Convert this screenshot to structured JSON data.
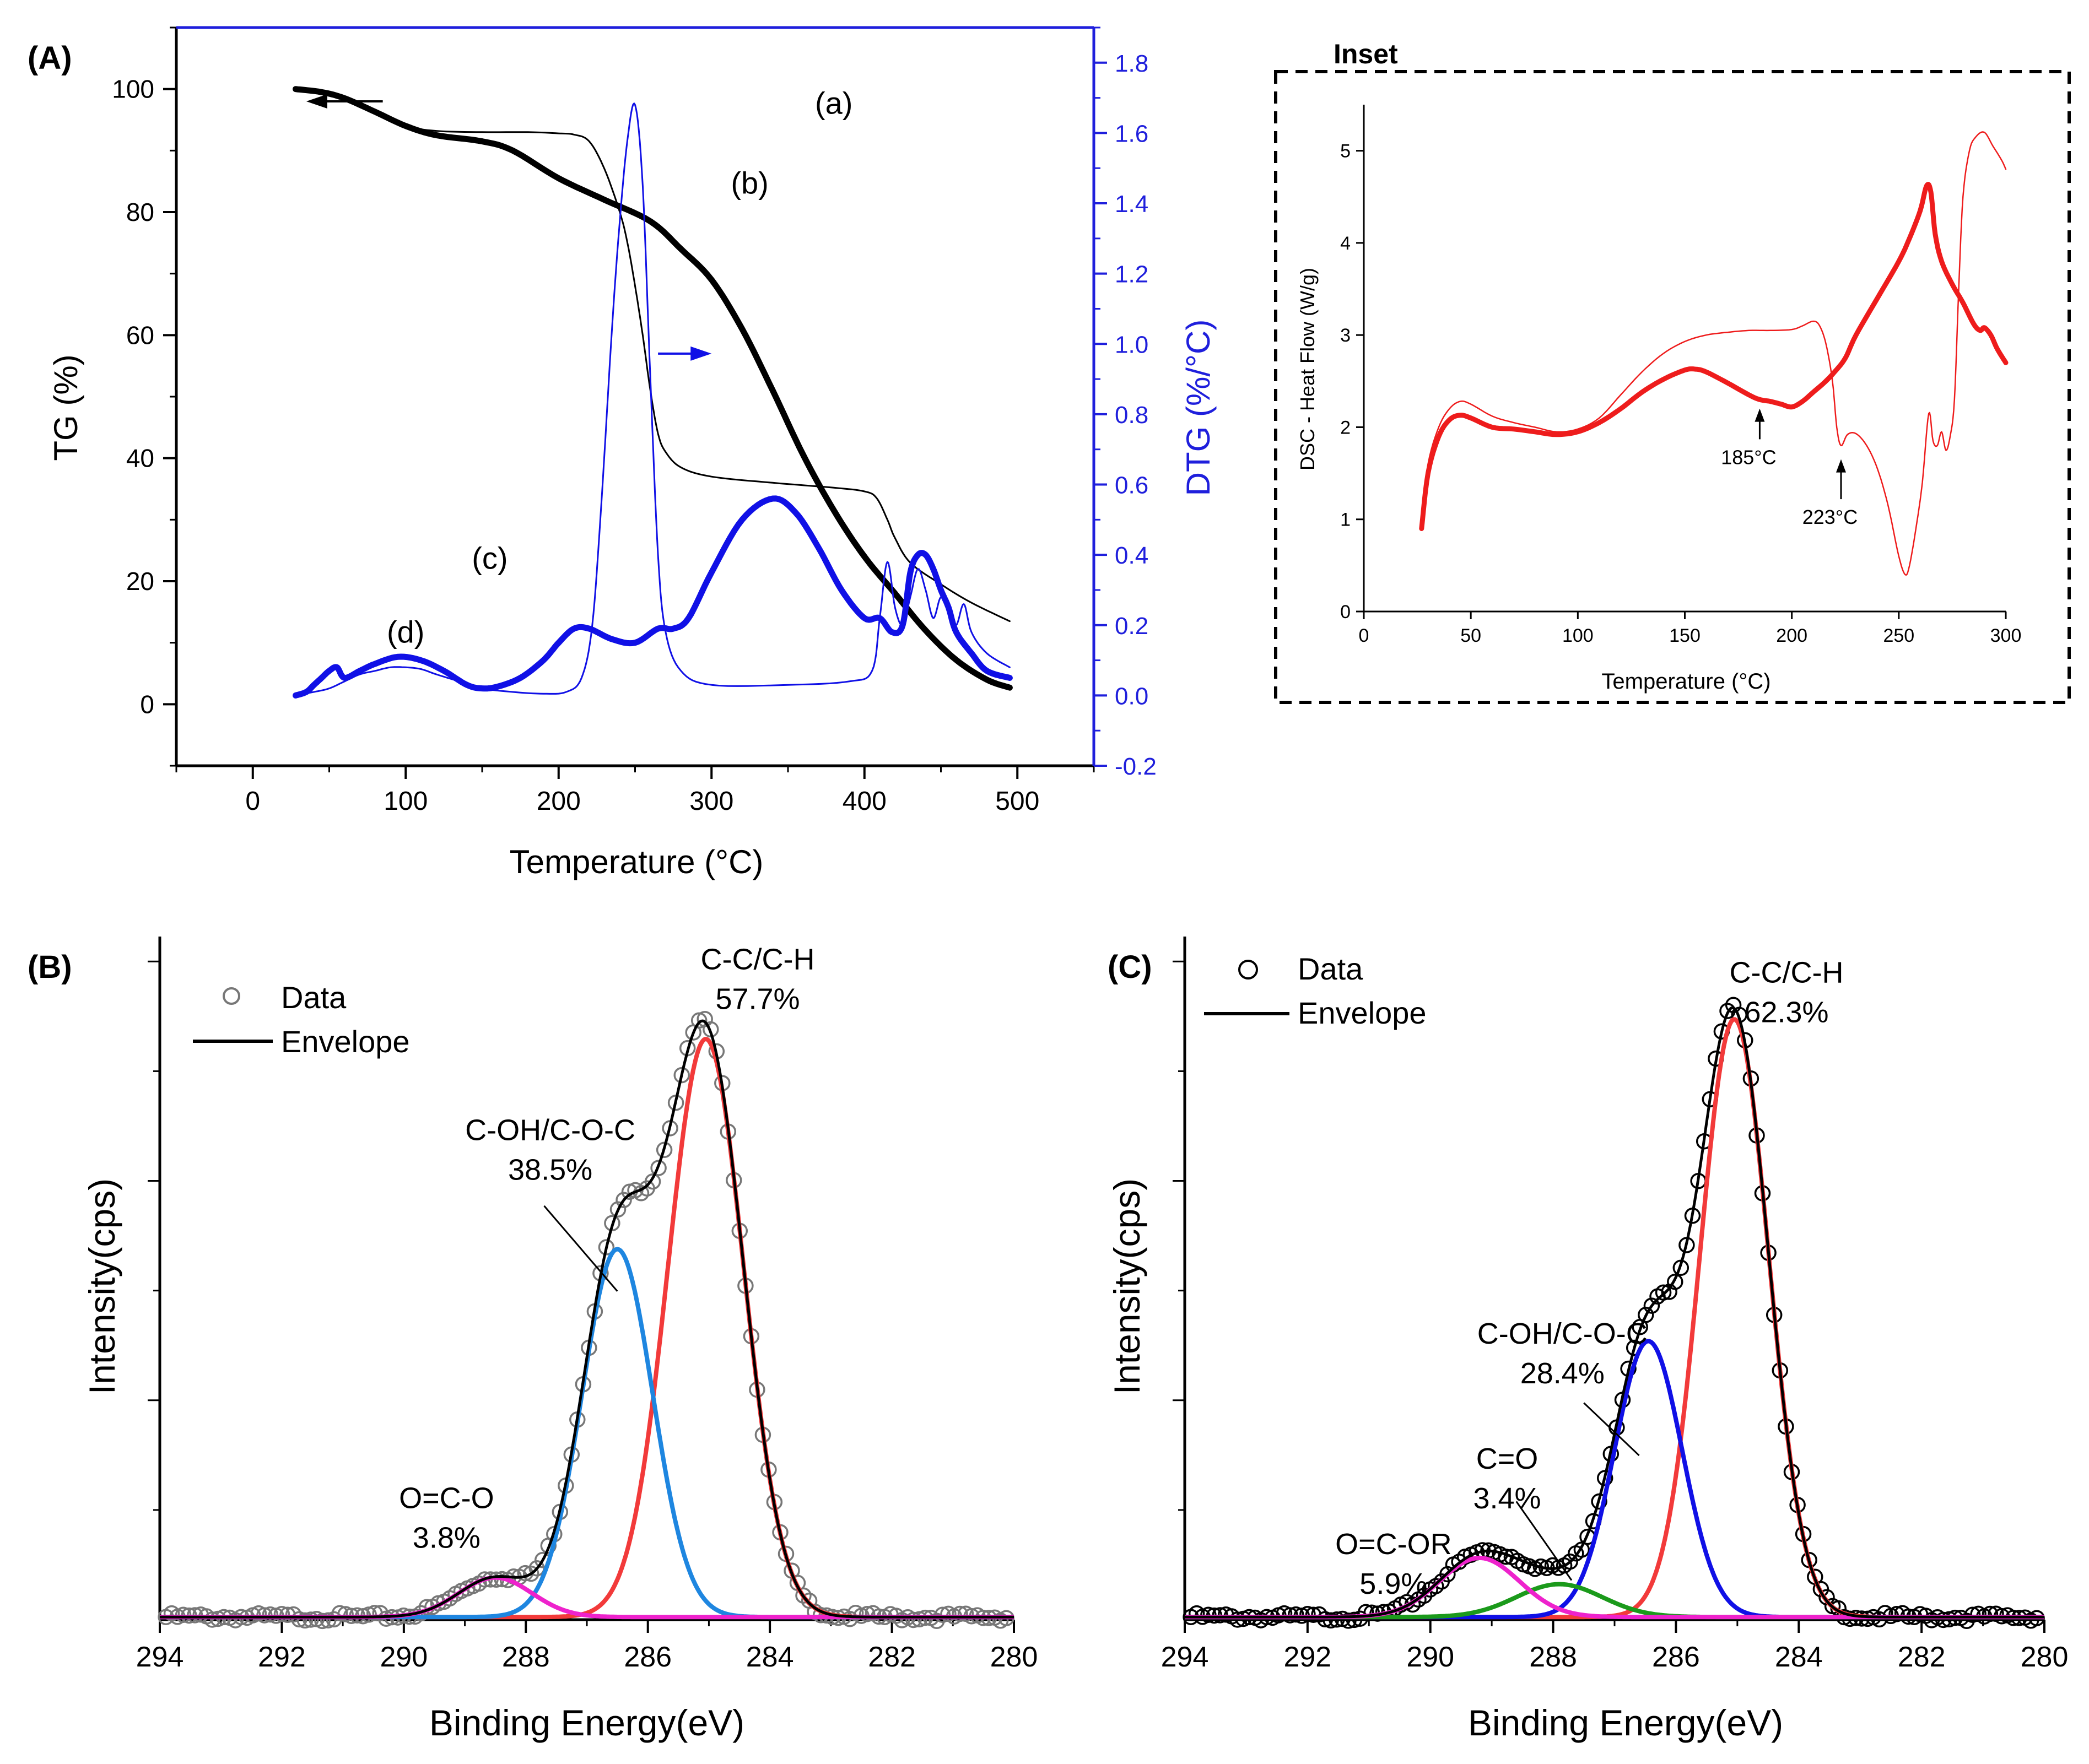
{
  "colors": {
    "black": "#000000",
    "blue": "#1010e6",
    "blue_axis": "#1f1fdc",
    "red": "#f23a3a",
    "dsc_red": "#ee1c1c",
    "light_blue": "#1e86e0",
    "magenta": "#ee22cc",
    "green": "#1b9a1b",
    "gray_marker": "#777777"
  },
  "chart_data": [
    {
      "id": "A",
      "type": "line",
      "panel_label": "(A)",
      "xlabel": "Temperature (°C)",
      "ylabel": "TG (%)",
      "y2label": "DTG (%/°C)",
      "xlim": [
        -50,
        550
      ],
      "ylim": [
        -10,
        110
      ],
      "y2lim": [
        -0.2,
        1.9
      ],
      "x_ticks": [
        "0",
        "100",
        "200",
        "300",
        "400",
        "500"
      ],
      "y_ticks": [
        "0",
        "20",
        "40",
        "60",
        "80",
        "100"
      ],
      "y2_ticks": [
        "-0.2",
        "0.0",
        "0.2",
        "0.4",
        "0.6",
        "0.8",
        "1.0",
        "1.2",
        "1.4",
        "1.6",
        "1.8"
      ],
      "series": [
        {
          "name": "(a)",
          "axis": "TG",
          "color": "black",
          "width": "thin",
          "x": [
            28,
            45,
            60,
            80,
            100,
            120,
            150,
            180,
            200,
            210,
            220,
            230,
            240,
            245,
            250,
            255,
            260,
            265,
            270,
            280,
            300,
            340,
            380,
            400,
            408,
            415,
            420,
            430,
            450,
            470,
            495
          ],
          "y": [
            100,
            99.5,
            98.5,
            96.2,
            94.0,
            93.2,
            93.0,
            93.0,
            92.8,
            92.6,
            91.5,
            87,
            80,
            75,
            68,
            60,
            51,
            44,
            41,
            38.5,
            37,
            36,
            35.2,
            34.6,
            33.5,
            30,
            27,
            23,
            19.5,
            16.5,
            13.5
          ]
        },
        {
          "name": "(b)",
          "axis": "TG",
          "color": "black",
          "width": "thick",
          "x": [
            28,
            45,
            60,
            80,
            100,
            120,
            150,
            170,
            200,
            230,
            260,
            280,
            300,
            320,
            340,
            360,
            380,
            400,
            420,
            440,
            460,
            480,
            495
          ],
          "y": [
            100,
            99.5,
            98.5,
            96.3,
            94.0,
            92.5,
            91.5,
            90,
            85.5,
            82,
            78.5,
            74,
            69,
            61,
            51,
            40.5,
            31.5,
            24,
            18,
            12,
            7.2,
            4,
            2.7
          ]
        },
        {
          "name": "(c)",
          "axis": "DTG",
          "color": "blue",
          "width": "thin",
          "x": [
            28,
            40,
            50,
            60,
            70,
            80,
            90,
            100,
            110,
            120,
            135,
            150,
            170,
            190,
            205,
            215,
            222,
            228,
            235,
            240,
            245,
            250,
            255,
            260,
            265,
            270,
            280,
            300,
            350,
            390,
            405,
            410,
            415,
            420,
            425,
            430,
            435,
            440,
            445,
            450,
            455,
            460,
            465,
            470,
            480,
            495
          ],
          "y": [
            0.0,
            0.01,
            0.02,
            0.04,
            0.06,
            0.07,
            0.08,
            0.08,
            0.075,
            0.06,
            0.04,
            0.02,
            0.01,
            0.005,
            0.01,
            0.05,
            0.2,
            0.55,
            1.05,
            1.35,
            1.58,
            1.68,
            1.45,
            0.9,
            0.4,
            0.18,
            0.07,
            0.03,
            0.03,
            0.04,
            0.07,
            0.22,
            0.38,
            0.25,
            0.2,
            0.28,
            0.36,
            0.3,
            0.22,
            0.28,
            0.24,
            0.2,
            0.26,
            0.18,
            0.12,
            0.08
          ]
        },
        {
          "name": "(d)",
          "axis": "DTG",
          "color": "blue",
          "width": "thick",
          "x": [
            28,
            35,
            40,
            45,
            50,
            55,
            60,
            70,
            80,
            95,
            110,
            125,
            140,
            150,
            160,
            175,
            190,
            200,
            210,
            220,
            235,
            250,
            265,
            275,
            285,
            300,
            320,
            340,
            355,
            370,
            385,
            400,
            410,
            418,
            425,
            430,
            435,
            440,
            445,
            450,
            455,
            460,
            470,
            480,
            495
          ],
          "y": [
            0.0,
            0.01,
            0.03,
            0.05,
            0.07,
            0.08,
            0.05,
            0.07,
            0.09,
            0.11,
            0.1,
            0.07,
            0.03,
            0.02,
            0.025,
            0.05,
            0.1,
            0.15,
            0.19,
            0.19,
            0.16,
            0.15,
            0.19,
            0.19,
            0.22,
            0.35,
            0.5,
            0.56,
            0.52,
            0.42,
            0.3,
            0.22,
            0.22,
            0.18,
            0.2,
            0.35,
            0.4,
            0.4,
            0.36,
            0.3,
            0.25,
            0.18,
            0.12,
            0.07,
            0.05
          ]
        }
      ],
      "labels": [
        {
          "text": "(a)",
          "x": 380,
          "y": 96
        },
        {
          "text": "(b)",
          "x": 325,
          "y": 83
        },
        {
          "text": "(c)",
          "x": 155,
          "y": 22
        },
        {
          "text": "(d)",
          "x": 100,
          "y": 10
        }
      ],
      "arrows": [
        {
          "direction": "left",
          "axis": "TG",
          "x_from": 85,
          "x_to": 35,
          "y": 98,
          "color": "black"
        },
        {
          "direction": "right",
          "axis": "TG",
          "x_from": 265,
          "x_to": 300,
          "y": 57,
          "color": "blue"
        }
      ]
    },
    {
      "id": "inset",
      "type": "line",
      "title": "Inset",
      "xlabel": "Temperature (°C)",
      "ylabel": "DSC - Heat Flow (W/g)",
      "xlim": [
        0,
        300
      ],
      "ylim": [
        0,
        5.5
      ],
      "x_ticks": [
        "0",
        "50",
        "100",
        "150",
        "200",
        "250",
        "300"
      ],
      "y_ticks": [
        "0",
        "1",
        "2",
        "3",
        "4",
        "5"
      ],
      "series": [
        {
          "name": "thin",
          "color": "dsc_red",
          "width": "thin",
          "x": [
            27,
            30,
            35,
            40,
            45,
            50,
            60,
            70,
            80,
            90,
            100,
            110,
            120,
            130,
            140,
            150,
            160,
            170,
            180,
            190,
            200,
            205,
            210,
            213,
            216,
            219,
            221,
            223,
            226,
            230,
            235,
            240,
            245,
            250,
            253,
            255,
            258,
            261,
            264,
            266,
            268,
            270,
            272,
            274,
            276,
            278,
            280,
            283,
            286,
            290,
            294,
            298,
            300
          ],
          "y": [
            1.0,
            1.6,
            2.0,
            2.2,
            2.28,
            2.25,
            2.12,
            2.05,
            2.0,
            1.95,
            1.98,
            2.1,
            2.35,
            2.6,
            2.8,
            2.93,
            3.0,
            3.03,
            3.05,
            3.05,
            3.06,
            3.1,
            3.15,
            3.1,
            2.9,
            2.5,
            2.0,
            1.8,
            1.92,
            1.93,
            1.8,
            1.55,
            1.15,
            0.6,
            0.4,
            0.5,
            0.9,
            1.4,
            2.15,
            1.85,
            1.8,
            1.95,
            1.75,
            1.9,
            2.3,
            3.5,
            4.5,
            5.0,
            5.15,
            5.2,
            5.05,
            4.9,
            4.8
          ]
        },
        {
          "name": "thick",
          "color": "dsc_red",
          "width": "thick",
          "x": [
            27,
            30,
            35,
            40,
            45,
            50,
            60,
            70,
            80,
            90,
            100,
            110,
            120,
            130,
            140,
            150,
            155,
            160,
            170,
            180,
            185,
            190,
            195,
            200,
            205,
            210,
            215,
            220,
            225,
            230,
            240,
            250,
            255,
            260,
            263,
            265,
            267,
            270,
            275,
            280,
            285,
            288,
            290,
            293,
            296,
            300
          ],
          "y": [
            0.9,
            1.5,
            1.9,
            2.08,
            2.13,
            2.1,
            2.0,
            1.98,
            1.95,
            1.92,
            1.95,
            2.05,
            2.2,
            2.38,
            2.52,
            2.62,
            2.63,
            2.6,
            2.48,
            2.35,
            2.3,
            2.28,
            2.25,
            2.22,
            2.28,
            2.38,
            2.48,
            2.6,
            2.75,
            3.0,
            3.4,
            3.8,
            4.05,
            4.35,
            4.62,
            4.55,
            4.1,
            3.8,
            3.55,
            3.35,
            3.12,
            3.05,
            3.08,
            3.0,
            2.85,
            2.7
          ]
        }
      ],
      "annotations": [
        {
          "text": "185°C",
          "x": 185,
          "y": 2.25,
          "label_y": 1.6
        },
        {
          "text": "223°C",
          "x": 223,
          "y": 1.7,
          "label_y": 0.95
        }
      ]
    },
    {
      "id": "B",
      "type": "line",
      "panel_label": "(B)",
      "xlabel": "Binding Energy(eV)",
      "ylabel": "Intensity(cps)",
      "xlim": [
        294,
        280
      ],
      "ylim": [
        0,
        1.04
      ],
      "x_ticks": [
        "294",
        "292",
        "290",
        "288",
        "286",
        "284",
        "282",
        "280"
      ],
      "legend": {
        "position": "top-left",
        "data_label": "Data",
        "envelope_label": "Envelope"
      },
      "components": [
        {
          "name": "C-C/C-H",
          "percent": "57.7%",
          "center": 285.05,
          "amplitude": 0.88,
          "sigma": 0.62,
          "color": "red"
        },
        {
          "name": "C-OH/C-O-C",
          "percent": "38.5%",
          "center": 286.5,
          "amplitude": 0.56,
          "sigma": 0.58,
          "color": "light_blue"
        },
        {
          "name": "O=C-O",
          "percent": "3.8%",
          "center": 288.5,
          "amplitude": 0.06,
          "sigma": 0.6,
          "color": "magenta"
        }
      ],
      "baseline": 0.004,
      "peak_labels": [
        {
          "name": "C-C/C-H",
          "percent": "57.7%",
          "label_x": 284.2,
          "label_y": 0.99
        },
        {
          "name": "C-OH/C-O-C",
          "percent": "38.5%",
          "label_x": 287.6,
          "label_y": 0.73,
          "leader": [
            287.7,
            0.63,
            286.5,
            0.5
          ]
        },
        {
          "name": "O=C-O",
          "percent": "3.8%",
          "label_x": 289.3,
          "label_y": 0.17
        }
      ]
    },
    {
      "id": "C",
      "type": "line",
      "panel_label": "(C)",
      "xlabel": "Binding Energy(eV)",
      "ylabel": "Intensity(cps)",
      "xlim": [
        294,
        280
      ],
      "ylim": [
        0,
        1.04
      ],
      "x_ticks": [
        "294",
        "292",
        "290",
        "288",
        "286",
        "284",
        "282",
        "280"
      ],
      "legend": {
        "position": "top-left",
        "data_label": "Data",
        "envelope_label": "Envelope"
      },
      "components": [
        {
          "name": "C-C/C-H",
          "percent": "62.3%",
          "center": 285.05,
          "amplitude": 0.91,
          "sigma": 0.56,
          "color": "red"
        },
        {
          "name": "C-OH/C-O-C",
          "percent": "28.4%",
          "center": 286.45,
          "amplitude": 0.42,
          "sigma": 0.55,
          "color": "blue"
        },
        {
          "name": "C=O",
          "percent": "3.4%",
          "center": 287.9,
          "amplitude": 0.05,
          "sigma": 0.7,
          "color": "green"
        },
        {
          "name": "O=C-OR",
          "percent": "5.9%",
          "center": 289.2,
          "amplitude": 0.09,
          "sigma": 0.65,
          "color": "magenta"
        }
      ],
      "baseline": 0.004,
      "peak_labels": [
        {
          "name": "C-C/C-H",
          "percent": "62.3%",
          "label_x": 284.2,
          "label_y": 0.97
        },
        {
          "name": "C-OH/C-O-C",
          "percent": "28.4%",
          "label_x": 287.85,
          "label_y": 0.42,
          "leader": [
            287.5,
            0.33,
            286.6,
            0.25
          ]
        },
        {
          "name": "C=O",
          "percent": "3.4%",
          "label_x": 288.75,
          "label_y": 0.23,
          "leader": [
            288.6,
            0.18,
            287.7,
            0.06
          ]
        },
        {
          "name": "O=C-OR",
          "percent": "5.9%",
          "label_x": 290.6,
          "label_y": 0.1
        }
      ]
    }
  ]
}
